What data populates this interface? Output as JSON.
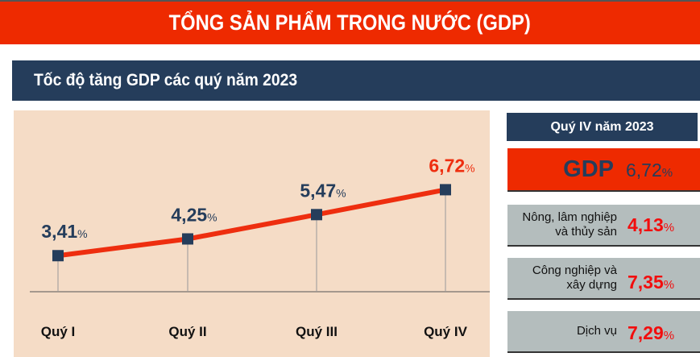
{
  "header": {
    "title": "TỔNG SẢN PHẨM TRONG NƯỚC (GDP)"
  },
  "subheader": {
    "title": "Tốc độ tăng GDP các quý năm 2023"
  },
  "chart_data": {
    "type": "line",
    "categories": [
      "Quý I",
      "Quý II",
      "Quý III",
      "Quý IV"
    ],
    "values": [
      3.41,
      4.25,
      5.47,
      6.72
    ],
    "labels": [
      "3,41",
      "4,25",
      "5,47",
      "6,72"
    ],
    "unit": "%",
    "ylim": [
      1.6,
      10.7
    ],
    "grid": false,
    "colors": {
      "line": "#ee2e0f",
      "marker": "#253d5b",
      "label": "#253d5b",
      "highlight_label": "#ee2e0f",
      "background": "#f5dcc6"
    }
  },
  "side_panel": {
    "title": "Quý IV năm 2023",
    "gdp": {
      "label": "GDP",
      "value": "6,72",
      "unit": "%"
    },
    "sectors": [
      {
        "label": "Nông, lâm nghiệp và thủy sản",
        "value": "4,13",
        "unit": "%"
      },
      {
        "label": "Công nghiệp và xây dựng",
        "value": "7,35",
        "unit": "%"
      },
      {
        "label": "Dịch vụ",
        "value": "7,29",
        "unit": "%"
      }
    ]
  }
}
